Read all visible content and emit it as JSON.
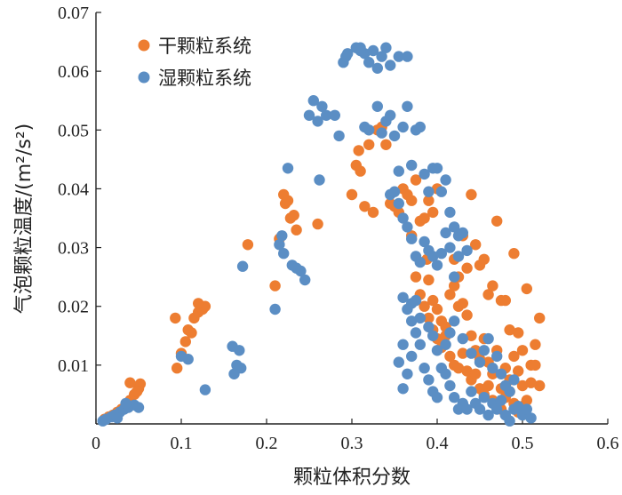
{
  "chart_data": {
    "type": "scatter",
    "title": "",
    "xlabel": "颗粒体积分数",
    "ylabel_main": "气泡颗粒温度/",
    "ylabel_unit": "(m²/s²)",
    "xlim": [
      0,
      0.6
    ],
    "ylim": [
      0,
      0.07
    ],
    "xticks": [
      0,
      0.1,
      0.2,
      0.3,
      0.4,
      0.5,
      0.6
    ],
    "xtick_labels": [
      "0",
      "0.1",
      "0.2",
      "0.3",
      "0.4",
      "0.5",
      "0.6"
    ],
    "yticks": [
      0.01,
      0.02,
      0.03,
      0.04,
      0.05,
      0.06,
      0.07
    ],
    "ytick_labels": [
      "0.01",
      "0.02",
      "0.03",
      "0.04",
      "0.05",
      "0.06",
      "0.07"
    ],
    "grid": false,
    "legend_position": "top-left",
    "series": [
      {
        "name": "干颗粒系统",
        "color": "#ed7d31",
        "points": [
          [
            0.01,
            0.0008
          ],
          [
            0.015,
            0.0012
          ],
          [
            0.02,
            0.0015
          ],
          [
            0.025,
            0.002
          ],
          [
            0.03,
            0.0025
          ],
          [
            0.035,
            0.003
          ],
          [
            0.04,
            0.004
          ],
          [
            0.045,
            0.005
          ],
          [
            0.05,
            0.006
          ],
          [
            0.052,
            0.0068
          ],
          [
            0.04,
            0.007
          ],
          [
            0.048,
            0.0055
          ],
          [
            0.093,
            0.018
          ],
          [
            0.095,
            0.0095
          ],
          [
            0.1,
            0.012
          ],
          [
            0.105,
            0.014
          ],
          [
            0.108,
            0.016
          ],
          [
            0.112,
            0.0155
          ],
          [
            0.115,
            0.018
          ],
          [
            0.12,
            0.019
          ],
          [
            0.125,
            0.0195
          ],
          [
            0.128,
            0.02
          ],
          [
            0.12,
            0.0205
          ],
          [
            0.178,
            0.0305
          ],
          [
            0.21,
            0.0235
          ],
          [
            0.215,
            0.0315
          ],
          [
            0.22,
            0.039
          ],
          [
            0.222,
            0.0375
          ],
          [
            0.225,
            0.038
          ],
          [
            0.228,
            0.035
          ],
          [
            0.232,
            0.0355
          ],
          [
            0.235,
            0.033
          ],
          [
            0.26,
            0.034
          ],
          [
            0.3,
            0.039
          ],
          [
            0.305,
            0.044
          ],
          [
            0.308,
            0.0465
          ],
          [
            0.31,
            0.043
          ],
          [
            0.315,
            0.037
          ],
          [
            0.32,
            0.0475
          ],
          [
            0.325,
            0.036
          ],
          [
            0.33,
            0.05
          ],
          [
            0.335,
            0.0505
          ],
          [
            0.34,
            0.0475
          ],
          [
            0.345,
            0.0375
          ],
          [
            0.35,
            0.037
          ],
          [
            0.355,
            0.036
          ],
          [
            0.36,
            0.04
          ],
          [
            0.365,
            0.039
          ],
          [
            0.37,
            0.038
          ],
          [
            0.375,
            0.0415
          ],
          [
            0.38,
            0.0345
          ],
          [
            0.385,
            0.035
          ],
          [
            0.388,
            0.028
          ],
          [
            0.39,
            0.038
          ],
          [
            0.395,
            0.036
          ],
          [
            0.4,
            0.04
          ],
          [
            0.37,
            0.032
          ],
          [
            0.375,
            0.025
          ],
          [
            0.38,
            0.022
          ],
          [
            0.385,
            0.02
          ],
          [
            0.39,
            0.018
          ],
          [
            0.395,
            0.016
          ],
          [
            0.4,
            0.0145
          ],
          [
            0.405,
            0.013
          ],
          [
            0.41,
            0.015
          ],
          [
            0.415,
            0.0115
          ],
          [
            0.42,
            0.01
          ],
          [
            0.425,
            0.0095
          ],
          [
            0.43,
            0.012
          ],
          [
            0.435,
            0.009
          ],
          [
            0.44,
            0.0075
          ],
          [
            0.445,
            0.0085
          ],
          [
            0.45,
            0.006
          ],
          [
            0.455,
            0.005
          ],
          [
            0.46,
            0.0065
          ],
          [
            0.465,
            0.004
          ],
          [
            0.47,
            0.003
          ],
          [
            0.475,
            0.0025
          ],
          [
            0.48,
            0.0045
          ],
          [
            0.485,
            0.0055
          ],
          [
            0.49,
            0.0035
          ],
          [
            0.495,
            0.002
          ],
          [
            0.5,
            0.003
          ],
          [
            0.505,
            0.004
          ],
          [
            0.39,
            0.0245
          ],
          [
            0.395,
            0.021
          ],
          [
            0.4,
            0.0195
          ],
          [
            0.405,
            0.0175
          ],
          [
            0.41,
            0.0165
          ],
          [
            0.415,
            0.022
          ],
          [
            0.42,
            0.0235
          ],
          [
            0.425,
            0.02
          ],
          [
            0.43,
            0.0205
          ],
          [
            0.435,
            0.0185
          ],
          [
            0.44,
            0.039
          ],
          [
            0.445,
            0.0305
          ],
          [
            0.45,
            0.027
          ],
          [
            0.455,
            0.028
          ],
          [
            0.46,
            0.022
          ],
          [
            0.465,
            0.0235
          ],
          [
            0.47,
            0.0345
          ],
          [
            0.475,
            0.021
          ],
          [
            0.48,
            0.021
          ],
          [
            0.485,
            0.016
          ],
          [
            0.49,
            0.029
          ],
          [
            0.495,
            0.0155
          ],
          [
            0.5,
            0.0125
          ],
          [
            0.505,
            0.023
          ],
          [
            0.51,
            0.01
          ],
          [
            0.515,
            0.0135
          ],
          [
            0.52,
            0.018
          ],
          [
            0.52,
            0.0065
          ],
          [
            0.515,
            0.01
          ],
          [
            0.51,
            0.007
          ],
          [
            0.42,
            0.028
          ],
          [
            0.425,
            0.025
          ],
          [
            0.43,
            0.032
          ],
          [
            0.435,
            0.0265
          ],
          [
            0.44,
            0.015
          ],
          [
            0.445,
            0.0125
          ],
          [
            0.45,
            0.011
          ],
          [
            0.455,
            0.0145
          ],
          [
            0.46,
            0.0105
          ],
          [
            0.465,
            0.0085
          ],
          [
            0.47,
            0.0125
          ],
          [
            0.475,
            0.006
          ],
          [
            0.48,
            0.0095
          ],
          [
            0.485,
            0.0075
          ],
          [
            0.49,
            0.0115
          ],
          [
            0.495,
            0.009
          ],
          [
            0.5,
            0.0065
          ]
        ]
      },
      {
        "name": "湿颗粒系统",
        "color": "#5b8ec4",
        "points": [
          [
            0.008,
            0.0005
          ],
          [
            0.012,
            0.0008
          ],
          [
            0.018,
            0.0012
          ],
          [
            0.022,
            0.0015
          ],
          [
            0.028,
            0.002
          ],
          [
            0.033,
            0.0025
          ],
          [
            0.038,
            0.0028
          ],
          [
            0.045,
            0.0032
          ],
          [
            0.05,
            0.0028
          ],
          [
            0.035,
            0.0035
          ],
          [
            0.025,
            0.001
          ],
          [
            0.1,
            0.0115
          ],
          [
            0.108,
            0.011
          ],
          [
            0.128,
            0.0058
          ],
          [
            0.16,
            0.0132
          ],
          [
            0.162,
            0.0085
          ],
          [
            0.165,
            0.01
          ],
          [
            0.168,
            0.0125
          ],
          [
            0.17,
            0.0095
          ],
          [
            0.172,
            0.0268
          ],
          [
            0.21,
            0.0195
          ],
          [
            0.215,
            0.0305
          ],
          [
            0.218,
            0.032
          ],
          [
            0.22,
            0.029
          ],
          [
            0.225,
            0.0435
          ],
          [
            0.23,
            0.027
          ],
          [
            0.235,
            0.0265
          ],
          [
            0.24,
            0.026
          ],
          [
            0.245,
            0.0245
          ],
          [
            0.25,
            0.0525
          ],
          [
            0.255,
            0.055
          ],
          [
            0.26,
            0.0515
          ],
          [
            0.262,
            0.0415
          ],
          [
            0.265,
            0.054
          ],
          [
            0.27,
            0.0525
          ],
          [
            0.28,
            0.0525
          ],
          [
            0.285,
            0.049
          ],
          [
            0.29,
            0.0615
          ],
          [
            0.293,
            0.0625
          ],
          [
            0.295,
            0.063
          ],
          [
            0.305,
            0.064
          ],
          [
            0.31,
            0.064
          ],
          [
            0.315,
            0.063
          ],
          [
            0.32,
            0.0615
          ],
          [
            0.325,
            0.0635
          ],
          [
            0.33,
            0.0605
          ],
          [
            0.335,
            0.0625
          ],
          [
            0.34,
            0.064
          ],
          [
            0.345,
            0.061
          ],
          [
            0.355,
            0.0625
          ],
          [
            0.365,
            0.0625
          ],
          [
            0.31,
            0.0635
          ],
          [
            0.315,
            0.0505
          ],
          [
            0.32,
            0.05
          ],
          [
            0.33,
            0.054
          ],
          [
            0.335,
            0.0495
          ],
          [
            0.34,
            0.0515
          ],
          [
            0.345,
            0.0525
          ],
          [
            0.35,
            0.049
          ],
          [
            0.355,
            0.043
          ],
          [
            0.36,
            0.0505
          ],
          [
            0.365,
            0.054
          ],
          [
            0.37,
            0.044
          ],
          [
            0.375,
            0.05
          ],
          [
            0.38,
            0.0505
          ],
          [
            0.385,
            0.0425
          ],
          [
            0.39,
            0.0395
          ],
          [
            0.395,
            0.0435
          ],
          [
            0.4,
            0.0435
          ],
          [
            0.405,
            0.0395
          ],
          [
            0.41,
            0.0415
          ],
          [
            0.415,
            0.036
          ],
          [
            0.42,
            0.0335
          ],
          [
            0.425,
            0.032
          ],
          [
            0.43,
            0.0325
          ],
          [
            0.345,
            0.039
          ],
          [
            0.35,
            0.0395
          ],
          [
            0.355,
            0.0375
          ],
          [
            0.36,
            0.035
          ],
          [
            0.365,
            0.0335
          ],
          [
            0.37,
            0.0315
          ],
          [
            0.375,
            0.0285
          ],
          [
            0.38,
            0.0275
          ],
          [
            0.385,
            0.031
          ],
          [
            0.39,
            0.0295
          ],
          [
            0.395,
            0.0285
          ],
          [
            0.4,
            0.027
          ],
          [
            0.405,
            0.029
          ],
          [
            0.41,
            0.0325
          ],
          [
            0.415,
            0.03
          ],
          [
            0.42,
            0.025
          ],
          [
            0.425,
            0.0285
          ],
          [
            0.435,
            0.0295
          ],
          [
            0.355,
            0.0105
          ],
          [
            0.36,
            0.0135
          ],
          [
            0.365,
            0.0195
          ],
          [
            0.37,
            0.0175
          ],
          [
            0.375,
            0.0155
          ],
          [
            0.38,
            0.0135
          ],
          [
            0.385,
            0.0095
          ],
          [
            0.39,
            0.0075
          ],
          [
            0.395,
            0.0055
          ],
          [
            0.4,
            0.0045
          ],
          [
            0.405,
            0.0095
          ],
          [
            0.41,
            0.0085
          ],
          [
            0.415,
            0.0065
          ],
          [
            0.42,
            0.0045
          ],
          [
            0.425,
            0.0025
          ],
          [
            0.43,
            0.0035
          ],
          [
            0.435,
            0.0025
          ],
          [
            0.44,
            0.0055
          ],
          [
            0.445,
            0.0035
          ],
          [
            0.45,
            0.0025
          ],
          [
            0.455,
            0.0045
          ],
          [
            0.46,
            0.0015
          ],
          [
            0.465,
            0.0035
          ],
          [
            0.47,
            0.0025
          ],
          [
            0.475,
            0.004
          ],
          [
            0.48,
            0.0015
          ],
          [
            0.485,
            0.0005
          ],
          [
            0.49,
            0.0025
          ],
          [
            0.495,
            0.003
          ],
          [
            0.5,
            0.0015
          ],
          [
            0.505,
            0.0025
          ],
          [
            0.51,
            0.001
          ],
          [
            0.36,
            0.0215
          ],
          [
            0.37,
            0.0205
          ],
          [
            0.375,
            0.021
          ],
          [
            0.38,
            0.018
          ],
          [
            0.39,
            0.0165
          ],
          [
            0.395,
            0.015
          ],
          [
            0.4,
            0.0125
          ],
          [
            0.41,
            0.0135
          ],
          [
            0.415,
            0.0155
          ],
          [
            0.42,
            0.0175
          ],
          [
            0.43,
            0.0145
          ],
          [
            0.44,
            0.012
          ],
          [
            0.45,
            0.0105
          ],
          [
            0.455,
            0.0125
          ],
          [
            0.46,
            0.0145
          ],
          [
            0.465,
            0.0095
          ],
          [
            0.47,
            0.0115
          ],
          [
            0.475,
            0.0085
          ],
          [
            0.48,
            0.0065
          ],
          [
            0.485,
            0.0055
          ],
          [
            0.49,
            0.0075
          ],
          [
            0.36,
            0.006
          ],
          [
            0.365,
            0.0085
          ],
          [
            0.37,
            0.0115
          ]
        ]
      }
    ]
  }
}
